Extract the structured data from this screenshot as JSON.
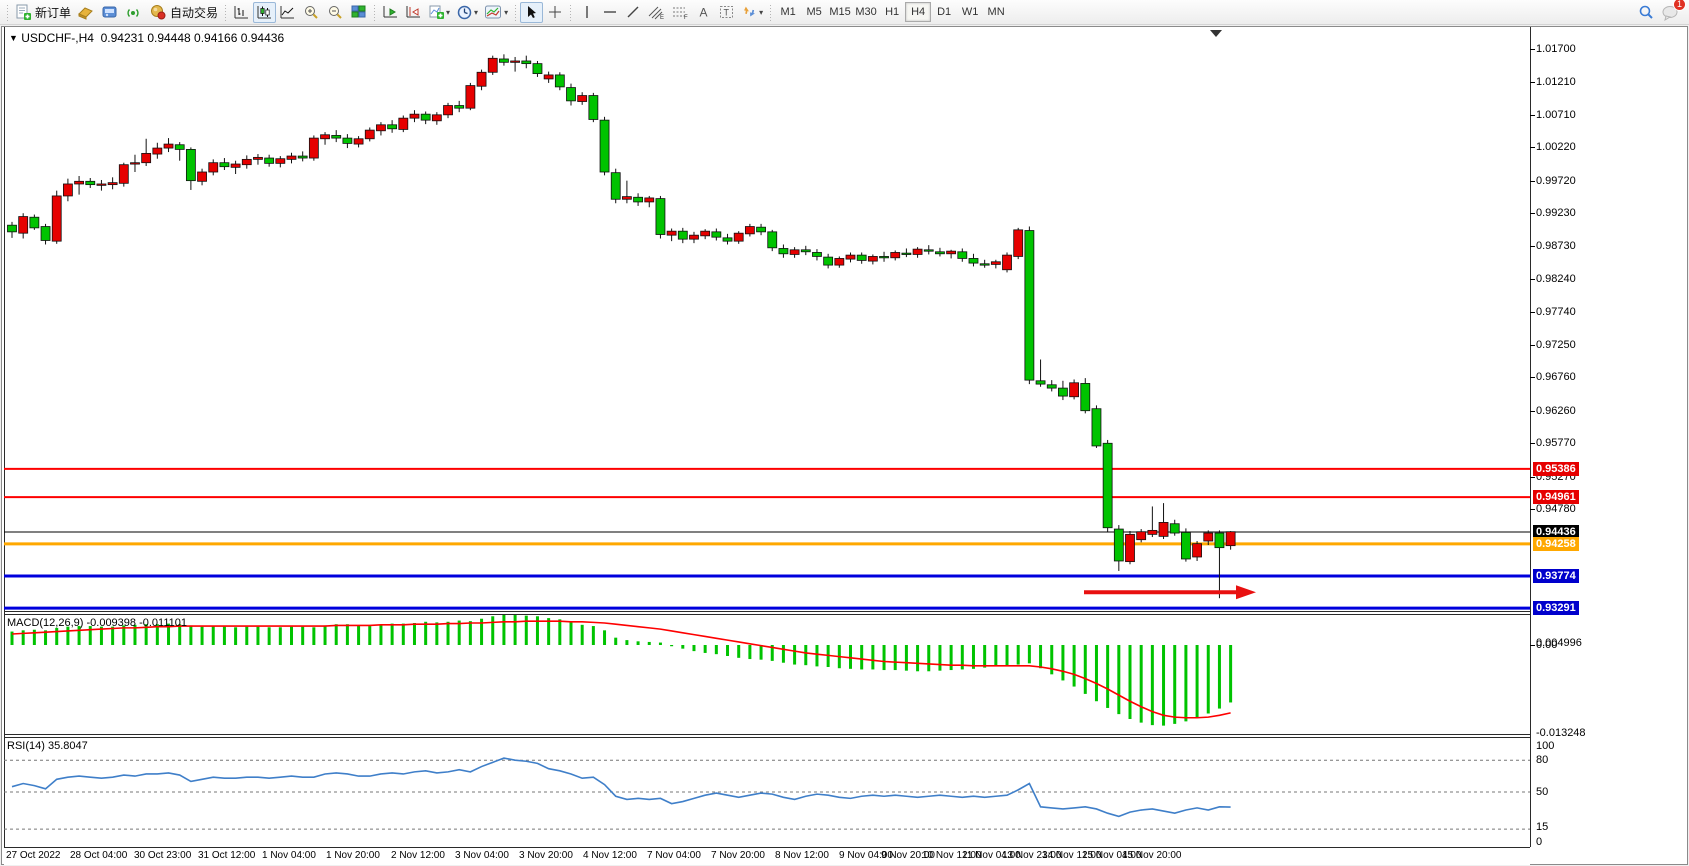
{
  "toolbar": {
    "new_order": "新订单",
    "auto_trading": "自动交易",
    "timeframes": [
      {
        "label": "M1",
        "active": false
      },
      {
        "label": "M5",
        "active": false
      },
      {
        "label": "M15",
        "active": false
      },
      {
        "label": "M30",
        "active": false
      },
      {
        "label": "H1",
        "active": false
      },
      {
        "label": "H4",
        "active": true
      },
      {
        "label": "D1",
        "active": false
      },
      {
        "label": "W1",
        "active": false
      },
      {
        "label": "MN",
        "active": false
      }
    ],
    "chat_badge": "1"
  },
  "chart": {
    "symbol_tf": "USDCHF-,H4",
    "ohlc_text": "0.94231 0.94448 0.94166 0.94436",
    "current_price": "0.94436",
    "colors": {
      "up": "#e60000",
      "down": "#00c300",
      "wick": "#111111",
      "line_red": "#fe0000",
      "line_orange": "#ffa800",
      "line_blue": "#0000dd",
      "current": "#000000"
    }
  },
  "chart_data": {
    "type": "candlestick",
    "symbol": "USDCHF-",
    "timeframe": "H4",
    "last_ohlc": {
      "open": "0.94231",
      "high": "0.94448",
      "low": "0.94166",
      "close": "0.94436"
    },
    "price_axis_ticks": [
      "1.01700",
      "1.01210",
      "1.00710",
      "1.00220",
      "0.99720",
      "0.99230",
      "0.98730",
      "0.98240",
      "0.97740",
      "0.97250",
      "0.96760",
      "0.96260",
      "0.95770",
      "0.95270",
      "0.94780"
    ],
    "horizontal_lines": [
      {
        "price": 0.95386,
        "label": "0.95386",
        "color": "#fe0000",
        "bg": "#e60000",
        "width": 2
      },
      {
        "price": 0.94961,
        "label": "0.94961",
        "color": "#fe0000",
        "bg": "#e60000",
        "width": 2
      },
      {
        "price": 0.94436,
        "label": "0.94436",
        "color": "#000000",
        "bg": "#000000",
        "width": 1
      },
      {
        "price": 0.94258,
        "label": "0.94258",
        "color": "#ffa800",
        "bg": "#ffa800",
        "width": 3
      },
      {
        "price": 0.93774,
        "label": "0.93774",
        "color": "#0000dd",
        "bg": "#0000cc",
        "width": 3
      },
      {
        "price": 0.93291,
        "label": "0.93291",
        "color": "#0000dd",
        "bg": "#0000cc",
        "width": 3
      }
    ],
    "arrow_annotation": {
      "color": "#e81010",
      "y_price": 0.9353,
      "x_from": 1080,
      "x_to": 1252
    },
    "candles": [
      [
        0.9905,
        0.991,
        0.9886,
        0.9895
      ],
      [
        0.9893,
        0.9923,
        0.9885,
        0.9918
      ],
      [
        0.9917,
        0.9921,
        0.9898,
        0.9901
      ],
      [
        0.9903,
        0.9907,
        0.9876,
        0.9882
      ],
      [
        0.9881,
        0.9957,
        0.9877,
        0.9949
      ],
      [
        0.9949,
        0.9975,
        0.9941,
        0.9967
      ],
      [
        0.9967,
        0.9979,
        0.9951,
        0.9971
      ],
      [
        0.9971,
        0.9976,
        0.9961,
        0.9966
      ],
      [
        0.9965,
        0.9973,
        0.9957,
        0.9967
      ],
      [
        0.9966,
        0.9977,
        0.9959,
        0.9969
      ],
      [
        0.9968,
        0.9999,
        0.9963,
        0.9996
      ],
      [
        0.9997,
        1.0011,
        0.9985,
        0.9999
      ],
      [
        0.9999,
        1.0035,
        0.9994,
        1.0013
      ],
      [
        1.0012,
        1.0029,
        1.0005,
        1.0021
      ],
      [
        1.0021,
        1.0036,
        1.0015,
        1.0027
      ],
      [
        1.0026,
        1.003,
        1.0002,
        1.0019
      ],
      [
        1.0019,
        1.0022,
        0.9958,
        0.9972
      ],
      [
        0.9971,
        0.999,
        0.9965,
        0.9985
      ],
      [
        0.9985,
        1.0004,
        0.998,
        0.9999
      ],
      [
        0.9999,
        1.0006,
        0.9988,
        0.9993
      ],
      [
        0.9992,
        1.0002,
        0.9982,
        0.9997
      ],
      [
        0.9996,
        1.001,
        0.999,
        1.0004
      ],
      [
        1.0004,
        1.0012,
        0.9996,
        1.0007
      ],
      [
        1.0006,
        1.0011,
        0.9993,
        0.9998
      ],
      [
        0.9998,
        1.0009,
        0.9992,
        1.0005
      ],
      [
        1.0004,
        1.0014,
        0.9998,
        1.0009
      ],
      [
        1.0009,
        1.0016,
        1.0001,
        1.0006
      ],
      [
        1.0006,
        1.004,
        1.0002,
        1.0036
      ],
      [
        1.0035,
        1.0045,
        1.0026,
        1.0041
      ],
      [
        1.004,
        1.0048,
        1.003,
        1.0036
      ],
      [
        1.0036,
        1.0042,
        1.0021,
        1.0028
      ],
      [
        1.0027,
        1.0039,
        1.0022,
        1.0035
      ],
      [
        1.0035,
        1.0052,
        1.0031,
        1.0048
      ],
      [
        1.0047,
        1.006,
        1.004,
        1.0056
      ],
      [
        1.0056,
        1.0063,
        1.0044,
        1.005
      ],
      [
        1.0049,
        1.007,
        1.0045,
        1.0066
      ],
      [
        1.0066,
        1.0078,
        1.006,
        1.0072
      ],
      [
        1.0072,
        1.0076,
        1.0057,
        1.0063
      ],
      [
        1.0062,
        1.0075,
        1.0056,
        1.0071
      ],
      [
        1.0071,
        1.0089,
        1.0066,
        1.0085
      ],
      [
        1.0085,
        1.0092,
        1.0075,
        1.0081
      ],
      [
        1.0081,
        1.0119,
        1.0078,
        1.0115
      ],
      [
        1.0114,
        1.0139,
        1.0108,
        1.0135
      ],
      [
        1.0135,
        1.016,
        1.0131,
        1.0156
      ],
      [
        1.0155,
        1.0162,
        1.0145,
        1.015
      ],
      [
        1.015,
        1.0158,
        1.0136,
        1.0152
      ],
      [
        1.0152,
        1.016,
        1.0141,
        1.0148
      ],
      [
        1.0148,
        1.0152,
        1.0128,
        1.0133
      ],
      [
        1.0125,
        1.0136,
        1.0119,
        1.0131
      ],
      [
        1.0131,
        1.0135,
        1.0108,
        1.0113
      ],
      [
        1.0112,
        1.0118,
        1.0085,
        1.0092
      ],
      [
        1.0091,
        1.0105,
        1.0086,
        1.01
      ],
      [
        1.01,
        1.0104,
        1.006,
        1.0064
      ],
      [
        1.0063,
        1.0068,
        0.998,
        0.9985
      ],
      [
        0.9984,
        0.999,
        0.9938,
        0.9944
      ],
      [
        0.9944,
        0.9972,
        0.9938,
        0.9948
      ],
      [
        0.9947,
        0.9953,
        0.9934,
        0.994
      ],
      [
        0.994,
        0.9949,
        0.9932,
        0.9946
      ],
      [
        0.9945,
        0.9949,
        0.9885,
        0.9891
      ],
      [
        0.989,
        0.99,
        0.9881,
        0.9896
      ],
      [
        0.9896,
        0.9901,
        0.9878,
        0.9884
      ],
      [
        0.9884,
        0.9895,
        0.9878,
        0.989
      ],
      [
        0.9889,
        0.9899,
        0.9884,
        0.9896
      ],
      [
        0.9895,
        0.99,
        0.9882,
        0.9887
      ],
      [
        0.9886,
        0.9892,
        0.9876,
        0.9881
      ],
      [
        0.9881,
        0.9896,
        0.9877,
        0.9893
      ],
      [
        0.9892,
        0.9907,
        0.9888,
        0.9903
      ],
      [
        0.9902,
        0.9907,
        0.989,
        0.9895
      ],
      [
        0.9895,
        0.9898,
        0.9866,
        0.9871
      ],
      [
        0.987,
        0.9876,
        0.9856,
        0.9862
      ],
      [
        0.9861,
        0.9872,
        0.9856,
        0.9868
      ],
      [
        0.9868,
        0.9874,
        0.986,
        0.9865
      ],
      [
        0.9864,
        0.9869,
        0.9852,
        0.9858
      ],
      [
        0.9857,
        0.9862,
        0.984,
        0.9845
      ],
      [
        0.9845,
        0.9858,
        0.9841,
        0.9855
      ],
      [
        0.9854,
        0.9864,
        0.9849,
        0.986
      ],
      [
        0.986,
        0.9864,
        0.9847,
        0.9852
      ],
      [
        0.9851,
        0.9861,
        0.9846,
        0.9858
      ],
      [
        0.9858,
        0.9865,
        0.985,
        0.9856
      ],
      [
        0.9856,
        0.9867,
        0.9852,
        0.9864
      ],
      [
        0.9863,
        0.987,
        0.9857,
        0.9861
      ],
      [
        0.9861,
        0.9872,
        0.9856,
        0.9869
      ],
      [
        0.9868,
        0.9875,
        0.9861,
        0.9866
      ],
      [
        0.9865,
        0.9871,
        0.9858,
        0.9862
      ],
      [
        0.9862,
        0.9868,
        0.9855,
        0.9866
      ],
      [
        0.9865,
        0.987,
        0.985,
        0.9855
      ],
      [
        0.9855,
        0.9862,
        0.9843,
        0.9848
      ],
      [
        0.9847,
        0.9853,
        0.9841,
        0.9846
      ],
      [
        0.9846,
        0.9853,
        0.984,
        0.985
      ],
      [
        0.9838,
        0.9864,
        0.9834,
        0.986
      ],
      [
        0.9858,
        0.9901,
        0.9854,
        0.9898
      ],
      [
        0.9897,
        0.9903,
        0.9666,
        0.9672
      ],
      [
        0.9671,
        0.9703,
        0.9662,
        0.9666
      ],
      [
        0.9665,
        0.9672,
        0.9655,
        0.966
      ],
      [
        0.966,
        0.9671,
        0.9642,
        0.9648
      ],
      [
        0.9647,
        0.9673,
        0.9643,
        0.9668
      ],
      [
        0.9667,
        0.9675,
        0.9622,
        0.9626
      ],
      [
        0.9629,
        0.9634,
        0.957,
        0.9573
      ],
      [
        0.9577,
        0.9582,
        0.9444,
        0.945
      ],
      [
        0.9448,
        0.9454,
        0.9385,
        0.94
      ],
      [
        0.9399,
        0.9445,
        0.9395,
        0.944
      ],
      [
        0.9432,
        0.9448,
        0.9428,
        0.9444
      ],
      [
        0.944,
        0.9482,
        0.9436,
        0.9446
      ],
      [
        0.9437,
        0.9487,
        0.9433,
        0.9458
      ],
      [
        0.9456,
        0.9462,
        0.9438,
        0.9442
      ],
      [
        0.9443,
        0.9449,
        0.9399,
        0.9403
      ],
      [
        0.9406,
        0.943,
        0.94,
        0.9426
      ],
      [
        0.943,
        0.9446,
        0.9424,
        0.9442
      ],
      [
        0.9442,
        0.9446,
        0.9344,
        0.942
      ],
      [
        0.9423,
        0.9445,
        0.9417,
        0.9444
      ]
    ],
    "macd": {
      "label": "MACD(12,26,9)",
      "values_text": "-0.009398 -0.011101",
      "axis_max": "0.004996",
      "axis_zero": "0.00",
      "axis_min": "-0.013248",
      "hist_color": "#00c300",
      "signal_color": "#fe0000",
      "hist": [
        0.0022,
        0.0024,
        0.0025,
        0.0024,
        0.0028,
        0.003,
        0.0031,
        0.0031,
        0.003,
        0.003,
        0.0032,
        0.0033,
        0.0034,
        0.0034,
        0.0035,
        0.0034,
        0.0032,
        0.003,
        0.0031,
        0.003,
        0.0029,
        0.003,
        0.003,
        0.0029,
        0.0029,
        0.003,
        0.003,
        0.0029,
        0.0032,
        0.0034,
        0.0034,
        0.0032,
        0.0031,
        0.0033,
        0.0035,
        0.0035,
        0.0036,
        0.0038,
        0.0037,
        0.0038,
        0.004,
        0.0039,
        0.0043,
        0.0047,
        0.005,
        0.0049,
        0.0048,
        0.0047,
        0.0044,
        0.0042,
        0.0038,
        0.0033,
        0.0031,
        0.0024,
        0.0012,
        0.0008,
        0.0006,
        0.0005,
        0.0004,
        -0.0002,
        -0.0006,
        -0.001,
        -0.0013,
        -0.0015,
        -0.0018,
        -0.0021,
        -0.0023,
        -0.0024,
        -0.0026,
        -0.0029,
        -0.0032,
        -0.0033,
        -0.0035,
        -0.0036,
        -0.0038,
        -0.0039,
        -0.004,
        -0.004,
        -0.0041,
        -0.0041,
        -0.0042,
        -0.0043,
        -0.0043,
        -0.0042,
        -0.0041,
        -0.004,
        -0.0039,
        -0.0037,
        -0.0035,
        -0.0033,
        -0.0032,
        -0.003,
        -0.0038,
        -0.0048,
        -0.0058,
        -0.0068,
        -0.008,
        -0.0092,
        -0.0103,
        -0.0113,
        -0.0121,
        -0.0127,
        -0.0131,
        -0.0132,
        -0.0129,
        -0.0125,
        -0.0118,
        -0.0112,
        -0.0104,
        -0.0094
      ],
      "signal": [
        0.0018,
        0.0019,
        0.002,
        0.0021,
        0.0022,
        0.0023,
        0.0024,
        0.0025,
        0.0026,
        0.0027,
        0.0028,
        0.0028,
        0.0029,
        0.003,
        0.003,
        0.0031,
        0.0031,
        0.0031,
        0.0031,
        0.0031,
        0.0031,
        0.0031,
        0.0031,
        0.0031,
        0.0031,
        0.0031,
        0.0031,
        0.0031,
        0.0031,
        0.0032,
        0.0032,
        0.0032,
        0.0032,
        0.0033,
        0.0033,
        0.0033,
        0.0034,
        0.0034,
        0.0034,
        0.0035,
        0.0035,
        0.0036,
        0.0036,
        0.0037,
        0.0038,
        0.0038,
        0.0039,
        0.0039,
        0.0039,
        0.0039,
        0.0038,
        0.0038,
        0.0037,
        0.0036,
        0.0034,
        0.0032,
        0.003,
        0.0028,
        0.0026,
        0.0023,
        0.002,
        0.0017,
        0.0014,
        0.0011,
        0.0008,
        0.0005,
        0.0002,
        -0.0001,
        -0.0004,
        -0.0007,
        -0.001,
        -0.0013,
        -0.0015,
        -0.0017,
        -0.0019,
        -0.0021,
        -0.0023,
        -0.0025,
        -0.0027,
        -0.0028,
        -0.0029,
        -0.003,
        -0.0031,
        -0.0032,
        -0.0033,
        -0.0033,
        -0.0034,
        -0.0034,
        -0.0034,
        -0.0034,
        -0.0034,
        -0.0034,
        -0.0036,
        -0.0039,
        -0.0043,
        -0.0048,
        -0.0055,
        -0.0063,
        -0.0072,
        -0.0082,
        -0.0092,
        -0.0101,
        -0.0109,
        -0.0115,
        -0.0118,
        -0.0119,
        -0.0119,
        -0.0118,
        -0.0115,
        -0.0111
      ]
    },
    "rsi": {
      "label": "RSI(14)",
      "value": "35.8047",
      "line_color": "#3f7fc9",
      "levels": [
        "100",
        "80",
        "50",
        "15",
        "0"
      ],
      "series": [
        55,
        58,
        56,
        53,
        62,
        64,
        65,
        64,
        63,
        64,
        66,
        65,
        67,
        67,
        68,
        66,
        60,
        62,
        64,
        63,
        63,
        64,
        64,
        63,
        64,
        65,
        64,
        64,
        67,
        68,
        67,
        65,
        65,
        67,
        68,
        67,
        69,
        70,
        68,
        69,
        71,
        69,
        74,
        78,
        82,
        80,
        79,
        77,
        72,
        70,
        67,
        63,
        64,
        57,
        46,
        43,
        44,
        43,
        44,
        39,
        41,
        44,
        47,
        49,
        47,
        45,
        47,
        49,
        48,
        45,
        43,
        46,
        48,
        47,
        45,
        44,
        46,
        47,
        46,
        47,
        46,
        45,
        46,
        47,
        46,
        45,
        46,
        45,
        46,
        47,
        52,
        58,
        36,
        35,
        34,
        35,
        36,
        34,
        30,
        27,
        31,
        33,
        34,
        32,
        30,
        33,
        35,
        33,
        36,
        35.8
      ]
    },
    "time_labels": [
      "27 Oct 2022",
      "28 Oct 04:00",
      "30 Oct 23:00",
      "31 Oct 12:00",
      "1 Nov 04:00",
      "1 Nov 20:00",
      "2 Nov 12:00",
      "3 Nov 04:00",
      "3 Nov 20:00",
      "4 Nov 12:00",
      "7 Nov 04:00",
      "7 Nov 20:00",
      "8 Nov 12:00",
      "9 Nov 04:00",
      "9 Nov 20:00",
      "10 Nov 12:00",
      "11 Nov 04:00",
      "13 Nov 23:00",
      "14 Nov 12:00",
      "15 Nov 04:00",
      "15 Nov 20:00"
    ]
  }
}
